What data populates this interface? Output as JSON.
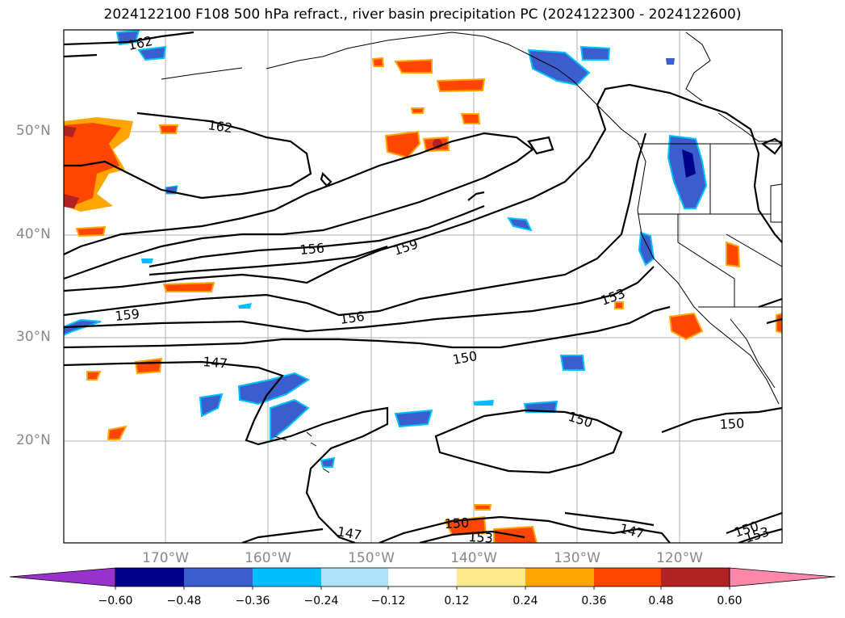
{
  "title": "2024122100 F108 500 hPa refract., river basin precipitation PC (2024122300 - 2024122600)",
  "map": {
    "lat_labels": [
      "50°N",
      "40°N",
      "30°N",
      "20°N"
    ],
    "lon_labels": [
      "170°W",
      "160°W",
      "150°W",
      "140°W",
      "130°W",
      "120°W"
    ],
    "grid": true,
    "contour_labels": [
      "162",
      "162",
      "156",
      "159",
      "159",
      "156",
      "153",
      "147",
      "150",
      "150",
      "150",
      "147",
      "147",
      "150",
      "153",
      "150",
      "153"
    ]
  },
  "colorbar": {
    "ticks": [
      "−0.60",
      "−0.48",
      "−0.36",
      "−0.24",
      "−0.12",
      "0.12",
      "0.24",
      "0.36",
      "0.48",
      "0.60"
    ],
    "colors": [
      "#9932CC",
      "#00008B",
      "#3A5FCD",
      "#00BFFF",
      "#ADE2FA",
      "#FFFFFF",
      "#FFE98C",
      "#FFA500",
      "#FF4500",
      "#B22222",
      "#FF88AA"
    ]
  }
}
